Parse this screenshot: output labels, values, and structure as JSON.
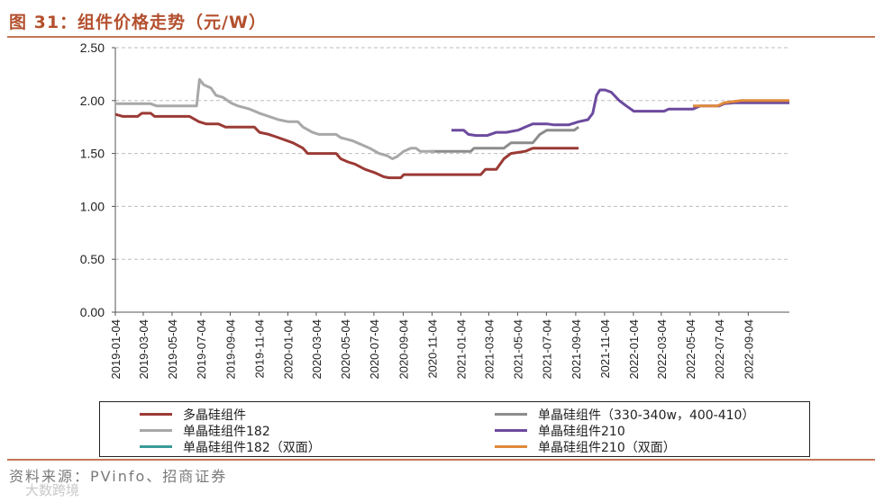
{
  "header": {
    "title": "图 31：组件价格走势（元/W）"
  },
  "footer": {
    "source": "资料来源：PVinfo、招商证券",
    "watermark": "大数跨境"
  },
  "chart_data": {
    "type": "line",
    "title": "图 31：组件价格走势（元/W）",
    "xlabel": "",
    "ylabel": "",
    "ylim": [
      0,
      2.5
    ],
    "y_ticks": [
      "0.00",
      "0.50",
      "1.00",
      "1.50",
      "2.00",
      "2.50"
    ],
    "x_ticks": [
      "2019-01-04",
      "2019-03-04",
      "2019-05-04",
      "2019-07-04",
      "2019-09-04",
      "2019-11-04",
      "2020-01-04",
      "2020-03-04",
      "2020-05-04",
      "2020-07-04",
      "2020-09-04",
      "2020-11-04",
      "2021-01-04",
      "2021-03-04",
      "2021-05-04",
      "2021-07-04",
      "2021-09-04",
      "2021-11-04",
      "2022-01-04",
      "2022-03-04",
      "2022-05-04",
      "2022-07-04",
      "2022-09-04"
    ],
    "xlim": [
      "2019-01-04",
      "2022-11-30"
    ],
    "grid": "horizontal dashed",
    "legend_position": "bottom",
    "series": [
      {
        "name": "多晶硅组件",
        "color": "#9b3a35",
        "points": [
          [
            "2019-01-04",
            1.87
          ],
          [
            "2019-01-20",
            1.85
          ],
          [
            "2019-02-20",
            1.85
          ],
          [
            "2019-03-01",
            1.88
          ],
          [
            "2019-03-20",
            1.88
          ],
          [
            "2019-03-28",
            1.85
          ],
          [
            "2019-06-10",
            1.85
          ],
          [
            "2019-06-30",
            1.8
          ],
          [
            "2019-07-15",
            1.78
          ],
          [
            "2019-08-10",
            1.78
          ],
          [
            "2019-08-25",
            1.75
          ],
          [
            "2019-10-25",
            1.75
          ],
          [
            "2019-11-05",
            1.7
          ],
          [
            "2019-11-25",
            1.68
          ],
          [
            "2019-12-15",
            1.65
          ],
          [
            "2020-01-15",
            1.6
          ],
          [
            "2020-02-05",
            1.55
          ],
          [
            "2020-02-15",
            1.5
          ],
          [
            "2020-04-15",
            1.5
          ],
          [
            "2020-04-25",
            1.45
          ],
          [
            "2020-05-10",
            1.42
          ],
          [
            "2020-05-25",
            1.4
          ],
          [
            "2020-06-15",
            1.35
          ],
          [
            "2020-07-05",
            1.32
          ],
          [
            "2020-07-25",
            1.28
          ],
          [
            "2020-08-05",
            1.27
          ],
          [
            "2020-08-30",
            1.27
          ],
          [
            "2020-09-05",
            1.3
          ],
          [
            "2021-02-15",
            1.3
          ],
          [
            "2021-02-25",
            1.35
          ],
          [
            "2021-03-20",
            1.35
          ],
          [
            "2021-04-05",
            1.45
          ],
          [
            "2021-04-20",
            1.5
          ],
          [
            "2021-05-20",
            1.52
          ],
          [
            "2021-06-05",
            1.55
          ],
          [
            "2021-09-10",
            1.55
          ]
        ]
      },
      {
        "name": "单晶硅组件（330-340w，400-410）",
        "color": "#8c8c8c",
        "points": [
          [
            "2020-11-01",
            1.52
          ],
          [
            "2021-01-25",
            1.52
          ],
          [
            "2021-02-01",
            1.55
          ],
          [
            "2021-04-05",
            1.55
          ],
          [
            "2021-04-20",
            1.6
          ],
          [
            "2021-06-05",
            1.6
          ],
          [
            "2021-06-20",
            1.68
          ],
          [
            "2021-07-05",
            1.72
          ],
          [
            "2021-09-01",
            1.72
          ],
          [
            "2021-09-10",
            1.75
          ]
        ]
      },
      {
        "name": "单晶硅组件182",
        "color": "#a8a8a8",
        "points": [
          [
            "2019-01-04",
            1.97
          ],
          [
            "2019-03-20",
            1.97
          ],
          [
            "2019-04-01",
            1.95
          ],
          [
            "2019-06-25",
            1.95
          ],
          [
            "2019-07-01",
            2.2
          ],
          [
            "2019-07-10",
            2.15
          ],
          [
            "2019-07-25",
            2.12
          ],
          [
            "2019-08-05",
            2.05
          ],
          [
            "2019-08-20",
            2.03
          ],
          [
            "2019-09-05",
            1.98
          ],
          [
            "2019-09-20",
            1.95
          ],
          [
            "2019-10-15",
            1.92
          ],
          [
            "2019-11-05",
            1.88
          ],
          [
            "2019-11-25",
            1.85
          ],
          [
            "2019-12-15",
            1.82
          ],
          [
            "2020-01-05",
            1.8
          ],
          [
            "2020-01-25",
            1.8
          ],
          [
            "2020-02-05",
            1.75
          ],
          [
            "2020-02-25",
            1.7
          ],
          [
            "2020-03-10",
            1.68
          ],
          [
            "2020-04-15",
            1.68
          ],
          [
            "2020-04-25",
            1.65
          ],
          [
            "2020-05-20",
            1.62
          ],
          [
            "2020-06-10",
            1.58
          ],
          [
            "2020-06-25",
            1.55
          ],
          [
            "2020-07-15",
            1.5
          ],
          [
            "2020-08-01",
            1.48
          ],
          [
            "2020-08-12",
            1.45
          ],
          [
            "2020-08-22",
            1.47
          ],
          [
            "2020-09-05",
            1.52
          ],
          [
            "2020-09-20",
            1.55
          ],
          [
            "2020-10-01",
            1.55
          ],
          [
            "2020-10-10",
            1.52
          ],
          [
            "2020-11-10",
            1.52
          ]
        ]
      },
      {
        "name": "单晶硅组件210",
        "color": "#6c4a9e",
        "points": [
          [
            "2020-12-15",
            1.72
          ],
          [
            "2021-01-10",
            1.72
          ],
          [
            "2021-01-20",
            1.68
          ],
          [
            "2021-02-05",
            1.67
          ],
          [
            "2021-03-01",
            1.67
          ],
          [
            "2021-03-20",
            1.7
          ],
          [
            "2021-04-10",
            1.7
          ],
          [
            "2021-05-05",
            1.72
          ],
          [
            "2021-05-20",
            1.75
          ],
          [
            "2021-06-05",
            1.78
          ],
          [
            "2021-07-05",
            1.78
          ],
          [
            "2021-07-20",
            1.77
          ],
          [
            "2021-08-20",
            1.77
          ],
          [
            "2021-09-10",
            1.8
          ],
          [
            "2021-09-30",
            1.82
          ],
          [
            "2021-10-10",
            1.88
          ],
          [
            "2021-10-18",
            2.05
          ],
          [
            "2021-10-25",
            2.1
          ],
          [
            "2021-11-05",
            2.1
          ],
          [
            "2021-11-18",
            2.08
          ],
          [
            "2021-12-05",
            2.0
          ],
          [
            "2021-12-20",
            1.95
          ],
          [
            "2022-01-05",
            1.9
          ],
          [
            "2022-03-10",
            1.9
          ],
          [
            "2022-03-20",
            1.92
          ],
          [
            "2022-05-10",
            1.92
          ],
          [
            "2022-05-25",
            1.95
          ],
          [
            "2022-07-05",
            1.95
          ],
          [
            "2022-07-15",
            1.97
          ],
          [
            "2022-08-05",
            1.98
          ],
          [
            "2022-11-30",
            1.98
          ]
        ]
      },
      {
        "name": "单晶硅组件182（双面）",
        "color": "#3a9a9a",
        "points": []
      },
      {
        "name": "单晶硅组件210（双面）",
        "color": "#e08a3a",
        "points": [
          [
            "2022-05-10",
            1.95
          ],
          [
            "2022-07-01",
            1.95
          ],
          [
            "2022-07-15",
            1.98
          ],
          [
            "2022-08-20",
            2.0
          ],
          [
            "2022-11-30",
            2.0
          ]
        ]
      }
    ]
  }
}
